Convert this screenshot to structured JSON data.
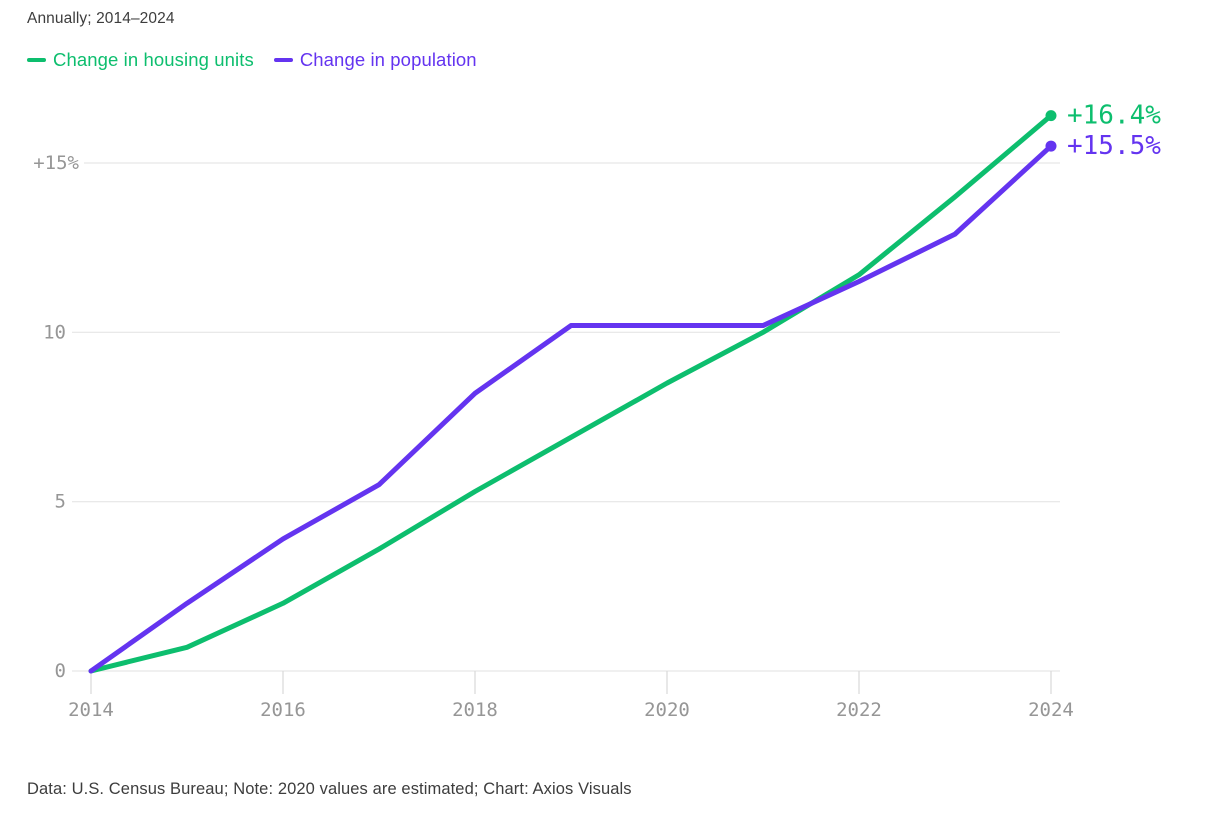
{
  "header": {
    "subtitle": "Annually; 2014–2024"
  },
  "chart_data": {
    "type": "line",
    "subtitle": "Annually; 2014–2024",
    "x": [
      2014,
      2015,
      2016,
      2017,
      2018,
      2019,
      2020,
      2021,
      2022,
      2023,
      2024
    ],
    "series": [
      {
        "name": "Change in housing units",
        "color": "#0dbe6e",
        "values": [
          0,
          0.7,
          2.0,
          3.6,
          5.3,
          6.9,
          8.5,
          10.0,
          11.7,
          14.0,
          16.4
        ],
        "end_label": "+16.4%"
      },
      {
        "name": "Change in population",
        "color": "#6434f0",
        "values": [
          0,
          2.0,
          3.9,
          5.5,
          8.2,
          10.2,
          10.2,
          10.2,
          11.5,
          12.9,
          15.5
        ],
        "end_label": "+15.5%"
      }
    ],
    "yticks": [
      {
        "value": 0,
        "label": "0"
      },
      {
        "value": 5,
        "label": "5"
      },
      {
        "value": 10,
        "label": "10"
      },
      {
        "value": 15,
        "label": "+15%"
      }
    ],
    "xticks": [
      2014,
      2016,
      2018,
      2020,
      2022,
      2024
    ],
    "ylim": [
      0,
      16.5
    ],
    "grid": "horizontal",
    "legend_position": "top-left",
    "colors": {
      "gridline": "#e6e6e6",
      "tick": "#d9d9d9",
      "tick_label": "#969696"
    }
  },
  "footer": {
    "source": "Data: U.S. Census Bureau; Note: 2020 values are estimated; Chart: Axios Visuals"
  }
}
